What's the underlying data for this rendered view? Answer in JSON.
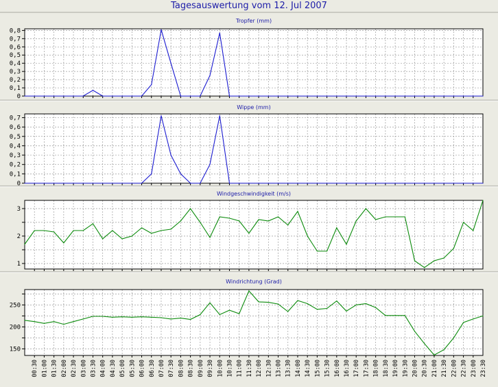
{
  "title": "Tagesauswertung vom 12. Jul 2007",
  "chart_data": {
    "x_tick_labels": [
      "00:30",
      "01:00",
      "01:30",
      "02:00",
      "02:30",
      "03:00",
      "03:30",
      "04:00",
      "04:30",
      "05:00",
      "05:30",
      "06:00",
      "06:30",
      "07:00",
      "07:30",
      "08:00",
      "08:30",
      "09:00",
      "09:30",
      "10:00",
      "10:30",
      "11:00",
      "11:30",
      "12:00",
      "12:30",
      "13:00",
      "13:30",
      "14:00",
      "14:30",
      "15:00",
      "15:30",
      "16:00",
      "16:30",
      "17:00",
      "17:30",
      "18:00",
      "18:30",
      "19:00",
      "19:30",
      "20:00",
      "20:30",
      "21:00",
      "21:30",
      "22:00",
      "22:30",
      "23:00",
      "23:30"
    ],
    "panels": [
      {
        "type": "line",
        "title": "Tropfer (mm)",
        "color": "#1a1ad0",
        "ylim": [
          0,
          0.82
        ],
        "yticks": [
          0,
          0.1,
          0.2,
          0.3,
          0.4,
          0.5,
          0.6,
          0.7,
          0.8
        ],
        "ytick_labels": [
          "0",
          "0,1",
          "0,2",
          "0,3",
          "0,4",
          "0,5",
          "0,6",
          "0,7",
          "0,8"
        ],
        "x": [
          0,
          1,
          2,
          3,
          4,
          5,
          6,
          7,
          8,
          9,
          10,
          11,
          12,
          13,
          14,
          15,
          16,
          17,
          18,
          19,
          20,
          21,
          22,
          23,
          24,
          25,
          26,
          27,
          28,
          29,
          30,
          31,
          32,
          33,
          34,
          35,
          36,
          37,
          38,
          39,
          40,
          41,
          42,
          43,
          44,
          45,
          46,
          47
        ],
        "values": [
          0,
          0,
          0,
          0,
          0,
          0,
          0,
          0.07,
          0,
          0,
          0,
          0,
          0,
          0.14,
          0.81,
          0.4,
          0,
          0,
          0,
          0.25,
          0.77,
          0,
          0,
          0,
          0,
          0,
          0,
          0,
          0,
          0,
          0,
          0,
          0,
          0,
          0,
          0,
          0,
          0,
          0,
          0,
          0,
          0,
          0,
          0,
          0,
          0,
          0,
          0
        ]
      },
      {
        "type": "line",
        "title": "Wippe (mm)",
        "color": "#1a1ad0",
        "ylim": [
          0,
          0.74
        ],
        "yticks": [
          0,
          0.1,
          0.2,
          0.3,
          0.4,
          0.5,
          0.6,
          0.7
        ],
        "ytick_labels": [
          "0",
          "0,1",
          "0,2",
          "0,3",
          "0,4",
          "0,5",
          "0,6",
          "0,7"
        ],
        "x": [
          0,
          1,
          2,
          3,
          4,
          5,
          6,
          7,
          8,
          9,
          10,
          11,
          12,
          13,
          14,
          15,
          16,
          17,
          18,
          19,
          20,
          21,
          22,
          23,
          24,
          25,
          26,
          27,
          28,
          29,
          30,
          31,
          32,
          33,
          34,
          35,
          36,
          37,
          38,
          39,
          40,
          41,
          42,
          43,
          44,
          45,
          46,
          47
        ],
        "values": [
          0,
          0,
          0,
          0,
          0,
          0,
          0,
          0,
          0,
          0,
          0,
          0,
          0,
          0.1,
          0.72,
          0.3,
          0.1,
          0,
          0,
          0.2,
          0.72,
          0,
          0,
          0,
          0,
          0,
          0,
          0,
          0,
          0,
          0,
          0,
          0,
          0,
          0,
          0,
          0,
          0,
          0,
          0,
          0,
          0,
          0,
          0,
          0,
          0,
          0,
          0
        ]
      },
      {
        "type": "line",
        "title": "Windgeschwindigkeit (m/s)",
        "color": "#0a8a0a",
        "ylim": [
          0.8,
          3.3
        ],
        "yticks": [
          1,
          1.5,
          2,
          2.5,
          3
        ],
        "ytick_labels": [
          "1",
          "",
          "2",
          "",
          "3"
        ],
        "x": [
          0,
          1,
          2,
          3,
          4,
          5,
          6,
          7,
          8,
          9,
          10,
          11,
          12,
          13,
          14,
          15,
          16,
          17,
          18,
          19,
          20,
          21,
          22,
          23,
          24,
          25,
          26,
          27,
          28,
          29,
          30,
          31,
          32,
          33,
          34,
          35,
          36,
          37,
          38,
          39,
          40,
          41,
          42,
          43,
          44,
          45,
          46,
          47
        ],
        "values": [
          1.7,
          2.2,
          2.2,
          2.15,
          1.75,
          2.2,
          2.2,
          2.45,
          1.9,
          2.2,
          1.9,
          2.0,
          2.3,
          2.1,
          2.2,
          2.25,
          2.55,
          3.0,
          2.5,
          1.95,
          2.7,
          2.65,
          2.55,
          2.1,
          2.6,
          2.55,
          2.7,
          2.4,
          2.9,
          2.0,
          1.45,
          1.45,
          2.3,
          1.7,
          2.55,
          3.0,
          2.6,
          2.7,
          2.7,
          2.7,
          1.1,
          0.85,
          1.1,
          1.2,
          1.55,
          2.5,
          2.2,
          3.3
        ]
      },
      {
        "type": "line",
        "title": "Windrichtung (Grad)",
        "color": "#0a8a0a",
        "ylim": [
          135,
          285
        ],
        "yticks": [
          150,
          175,
          200,
          225,
          250,
          275
        ],
        "ytick_labels": [
          "150",
          "",
          "200",
          "",
          "250",
          ""
        ],
        "x": [
          0,
          1,
          2,
          3,
          4,
          5,
          6,
          7,
          8,
          9,
          10,
          11,
          12,
          13,
          14,
          15,
          16,
          17,
          18,
          19,
          20,
          21,
          22,
          23,
          24,
          25,
          26,
          27,
          28,
          29,
          30,
          31,
          32,
          33,
          34,
          35,
          36,
          37,
          38,
          39,
          40,
          41,
          42,
          43,
          44,
          45,
          46,
          47
        ],
        "values": [
          215,
          212,
          208,
          212,
          206,
          212,
          218,
          224,
          224,
          222,
          223,
          222,
          223,
          222,
          221,
          218,
          220,
          217,
          228,
          255,
          228,
          238,
          230,
          282,
          257,
          256,
          252,
          235,
          260,
          253,
          240,
          242,
          259,
          236,
          250,
          253,
          244,
          226,
          226,
          226,
          190,
          162,
          136,
          148,
          175,
          210,
          218,
          225
        ]
      }
    ]
  }
}
